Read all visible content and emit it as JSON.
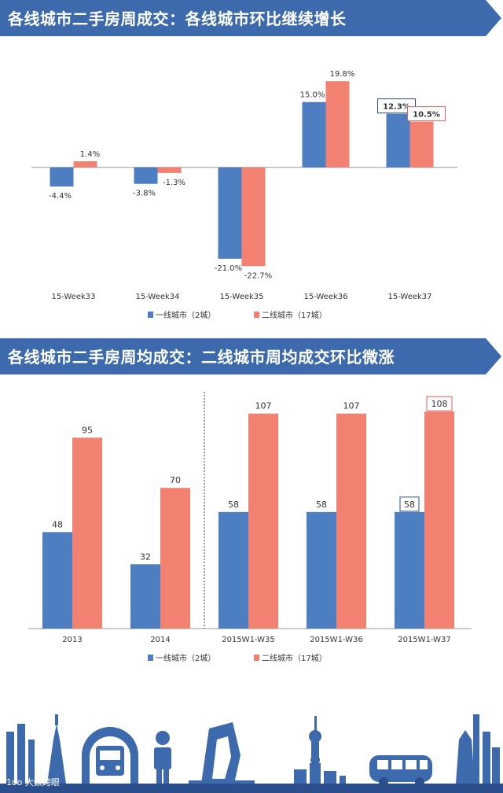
{
  "banner1": {
    "title": "各线城市二手房周成交：各线城市环比继续增长"
  },
  "banner2": {
    "title": "各线城市二手房周均成交：二线城市周均成交环比微涨"
  },
  "watermark": "1ᴅᴏ 大数跨眼",
  "colors": {
    "banner": "#3c6aad",
    "tier1": "#4d7ec2",
    "tier2": "#f28172",
    "text": "#333333"
  },
  "chart_data": [
    {
      "type": "bar",
      "categories": [
        "15-Week33",
        "15-Week34",
        "15-Week35",
        "15-Week36",
        "15-Week37"
      ],
      "series": [
        {
          "name": "一线城市（2城）",
          "values": [
            -4.4,
            -3.8,
            -21.0,
            15.0,
            12.3
          ],
          "labels": [
            "-4.4%",
            "-3.8%",
            "-21.0%",
            "15.0%",
            "12.3%"
          ]
        },
        {
          "name": "二线城市（17城）",
          "values": [
            1.4,
            -1.3,
            -22.7,
            19.8,
            10.5
          ],
          "labels": [
            "1.4%",
            "-1.3%",
            "-22.7%",
            "19.8%",
            "10.5%"
          ]
        }
      ],
      "legend": [
        "一线城市（2城）",
        "二线城市（17城）"
      ],
      "ylim": [
        -25,
        22
      ]
    },
    {
      "type": "bar",
      "categories": [
        "2013",
        "2014",
        "2015W1-W35",
        "2015W1-W36",
        "2015W1-W37"
      ],
      "series": [
        {
          "name": "一线城市（2城）",
          "values": [
            48,
            32,
            58,
            58,
            58
          ],
          "labels": [
            "48",
            "32",
            "58",
            "58",
            "58"
          ]
        },
        {
          "name": "二线城市（17城）",
          "values": [
            95,
            70,
            107,
            107,
            108
          ],
          "labels": [
            "95",
            "70",
            "107",
            "107",
            "108"
          ]
        }
      ],
      "legend": [
        "一线城市（2城）",
        "二线城市（17城）"
      ],
      "ylim": [
        0,
        110
      ]
    }
  ]
}
